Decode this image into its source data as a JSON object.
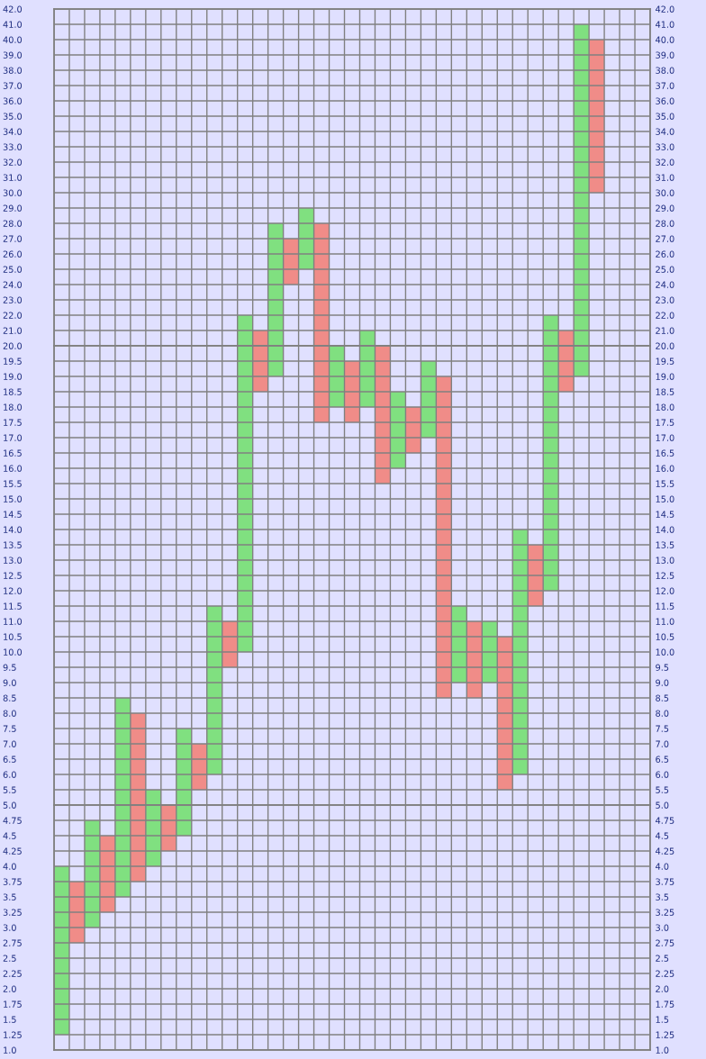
{
  "chart_data": [
    {
      "type": "bar",
      "categories": [
        null,
        null,
        null,
        null,
        null,
        null,
        null,
        null,
        null,
        null,
        null,
        null,
        null,
        null,
        null,
        null,
        null,
        null,
        null,
        null,
        null,
        null,
        null,
        null,
        null,
        null,
        null,
        null,
        null,
        null,
        null,
        null,
        null,
        null,
        null,
        null,
        null,
        null,
        null
      ],
      "values": [
        null,
        null,
        null,
        null,
        null,
        null,
        null,
        null,
        null,
        null,
        null,
        null,
        2,
        1,
        8,
        3,
        4,
        8,
        null,
        null,
        1,
        null,
        null,
        null,
        null,
        null,
        null,
        null,
        null,
        null,
        null,
        null,
        2,
        1,
        21,
        10,
        null,
        null,
        null
      ],
      "base": [
        null,
        null,
        null,
        null,
        null,
        null,
        null,
        null,
        null,
        null,
        null,
        null,
        20,
        20,
        20,
        24,
        25,
        20,
        null,
        null,
        20,
        null,
        null,
        null,
        null,
        null,
        null,
        null,
        null,
        null,
        null,
        null,
        20,
        20,
        20,
        30,
        null,
        null,
        null
      ],
      "colors": [
        null,
        null,
        null,
        null,
        null,
        null,
        null,
        null,
        null,
        null,
        null,
        null,
        "#80e080",
        "#f08c88",
        "#80e080",
        "#f08c88",
        "#80e080",
        "#f08c88",
        null,
        null,
        "#80e080",
        null,
        null,
        null,
        null,
        null,
        null,
        null,
        null,
        null,
        null,
        null,
        "#80e080",
        "#f08c88",
        "#80e080",
        "#f08c88",
        null,
        null,
        null
      ],
      "ylim": [
        20,
        42
      ],
      "yticks": [
        {
          "value": 20,
          "label": "20.0"
        },
        {
          "value": 21,
          "label": "21.0"
        },
        {
          "value": 22,
          "label": "22.0"
        },
        {
          "value": 23,
          "label": "23.0"
        },
        {
          "value": 24,
          "label": "24.0"
        },
        {
          "value": 25,
          "label": "25.0"
        },
        {
          "value": 26,
          "label": "26.0"
        },
        {
          "value": 27,
          "label": "27.0"
        },
        {
          "value": 28,
          "label": "28.0"
        },
        {
          "value": 29,
          "label": "29.0"
        },
        {
          "value": 30,
          "label": "30.0"
        },
        {
          "value": 31,
          "label": "31.0"
        },
        {
          "value": 32,
          "label": "32.0"
        },
        {
          "value": 33,
          "label": "33.0"
        },
        {
          "value": 34,
          "label": "34.0"
        },
        {
          "value": 35,
          "label": "35.0"
        },
        {
          "value": 36,
          "label": "36.0"
        },
        {
          "value": 37,
          "label": "37.0"
        },
        {
          "value": 38,
          "label": "38.0"
        },
        {
          "value": 39,
          "label": "39.0"
        },
        {
          "value": 40,
          "label": "40.0"
        },
        {
          "value": 41,
          "label": "41.0"
        },
        {
          "value": 42,
          "label": "42.0"
        }
      ],
      "y2lim": [
        20,
        42
      ],
      "y2ticks": [
        {
          "value": 20,
          "label": "20.0"
        },
        {
          "value": 21,
          "label": "21.0"
        },
        {
          "value": 22,
          "label": "22.0"
        },
        {
          "value": 23,
          "label": "23.0"
        },
        {
          "value": 24,
          "label": "24.0"
        },
        {
          "value": 25,
          "label": "25.0"
        },
        {
          "value": 26,
          "label": "26.0"
        },
        {
          "value": 27,
          "label": "27.0"
        },
        {
          "value": 28,
          "label": "28.0"
        },
        {
          "value": 29,
          "label": "29.0"
        },
        {
          "value": 30,
          "label": "30.0"
        },
        {
          "value": 31,
          "label": "31.0"
        },
        {
          "value": 32,
          "label": "32.0"
        },
        {
          "value": 33,
          "label": "33.0"
        },
        {
          "value": 34,
          "label": "34.0"
        },
        {
          "value": 35,
          "label": "35.0"
        },
        {
          "value": 36,
          "label": "36.0"
        },
        {
          "value": 37,
          "label": "37.0"
        },
        {
          "value": 38,
          "label": "38.0"
        },
        {
          "value": 39,
          "label": "39.0"
        },
        {
          "value": 40,
          "label": "40.0"
        },
        {
          "value": 41,
          "label": "41.0"
        },
        {
          "value": 42,
          "label": "42.0"
        }
      ],
      "grid": true
    },
    {
      "type": "bar",
      "categories": [
        null,
        null,
        null,
        null,
        null,
        null,
        null,
        null,
        null,
        null,
        null,
        null,
        null,
        null,
        null,
        null,
        null,
        null,
        null,
        null,
        null,
        null,
        null,
        null,
        null,
        null,
        null,
        null,
        null,
        null,
        null,
        null,
        null,
        null,
        null,
        null,
        null,
        null,
        null
      ],
      "values": [
        null,
        null,
        null,
        null,
        3.5,
        3,
        0.5,
        null,
        2.5,
        1.5,
        5.5,
        1.5,
        10,
        1.5,
        1,
        null,
        null,
        2.5,
        2,
        2,
        2,
        4.5,
        2.5,
        1.5,
        2.5,
        10.5,
        2.5,
        2.5,
        2,
        5,
        8,
        2,
        8,
        1.5,
        1,
        null,
        null,
        null,
        null
      ],
      "base": [
        null,
        null,
        null,
        null,
        5,
        5,
        5,
        null,
        5,
        5.5,
        6,
        9.5,
        10,
        18.5,
        19,
        null,
        null,
        17.5,
        18,
        17.5,
        18,
        15.5,
        16,
        16.5,
        17,
        8.5,
        9,
        8.5,
        9,
        5.5,
        6,
        11.5,
        12,
        18.5,
        19,
        null,
        null,
        null,
        null
      ],
      "colors": [
        null,
        null,
        null,
        null,
        "#80e080",
        "#f08c88",
        "#80e080",
        null,
        "#80e080",
        "#f08c88",
        "#80e080",
        "#f08c88",
        "#80e080",
        "#f08c88",
        "#80e080",
        null,
        null,
        "#f08c88",
        "#80e080",
        "#f08c88",
        "#80e080",
        "#f08c88",
        "#80e080",
        "#f08c88",
        "#80e080",
        "#f08c88",
        "#80e080",
        "#f08c88",
        "#80e080",
        "#f08c88",
        "#80e080",
        "#f08c88",
        "#80e080",
        "#f08c88",
        "#80e080",
        null,
        null,
        null,
        null
      ],
      "ylim": [
        5,
        20
      ],
      "yticks": [
        {
          "value": 5,
          "label": "5.0"
        },
        5.5,
        {
          "value": 6,
          "label": "6.0"
        },
        6.5,
        {
          "value": 7,
          "label": "7.0"
        },
        7.5,
        {
          "value": 8,
          "label": "8.0"
        },
        8.5,
        {
          "value": 9,
          "label": "9.0"
        },
        9.5,
        {
          "value": 10,
          "label": "10.0"
        },
        10.5,
        {
          "value": 11,
          "label": "11.0"
        },
        11.5,
        {
          "value": 12,
          "label": "12.0"
        },
        12.5,
        {
          "value": 13,
          "label": "13.0"
        },
        13.5,
        {
          "value": 14,
          "label": "14.0"
        },
        14.5,
        {
          "value": 15,
          "label": "15.0"
        },
        15.5,
        {
          "value": 16,
          "label": "16.0"
        },
        16.5,
        {
          "value": 17,
          "label": "17.0"
        },
        17.5,
        {
          "value": 18,
          "label": "18.0"
        },
        18.5,
        {
          "value": 19,
          "label": "19.0"
        },
        19.5
      ],
      "y2lim": [
        5,
        20
      ],
      "y2ticks": [
        {
          "value": 5,
          "label": "5.0"
        },
        5.5,
        {
          "value": 6,
          "label": "6.0"
        },
        6.5,
        {
          "value": 7,
          "label": "7.0"
        },
        7.5,
        {
          "value": 8,
          "label": "8.0"
        },
        8.5,
        {
          "value": 9,
          "label": "9.0"
        },
        9.5,
        {
          "value": 10,
          "label": "10.0"
        },
        10.5,
        {
          "value": 11,
          "label": "11.0"
        },
        11.5,
        {
          "value": 12,
          "label": "12.0"
        },
        12.5,
        {
          "value": 13,
          "label": "13.0"
        },
        13.5,
        {
          "value": 14,
          "label": "14.0"
        },
        14.5,
        {
          "value": 15,
          "label": "15.0"
        },
        15.5,
        {
          "value": 16,
          "label": "16.0"
        },
        16.5,
        {
          "value": 17,
          "label": "17.0"
        },
        17.5,
        {
          "value": 18,
          "label": "18.0"
        },
        18.5,
        {
          "value": 19,
          "label": "19.0"
        },
        19.5
      ],
      "grid": true
    },
    {
      "type": "bar",
      "categories": [
        null,
        null,
        null,
        null,
        null,
        null,
        null,
        null,
        null,
        null,
        null,
        null,
        null,
        null,
        null,
        null,
        null,
        null,
        null,
        null,
        null,
        null,
        null,
        null,
        null,
        null,
        null,
        null,
        null,
        null,
        null,
        null,
        null,
        null,
        null,
        null,
        null,
        null,
        null
      ],
      "values": [
        2.75,
        1,
        1.75,
        1.25,
        1.5,
        1.25,
        1,
        0.75,
        0.5,
        null,
        null,
        null,
        null,
        null,
        null,
        null,
        null,
        null,
        null,
        null,
        null,
        null,
        null,
        null,
        null,
        null,
        null,
        null,
        null,
        null,
        null,
        null,
        null,
        null,
        null,
        null,
        null,
        null,
        null
      ],
      "base": [
        1.25,
        2.75,
        3,
        3.25,
        3.5,
        3.75,
        4,
        4.25,
        4.5,
        null,
        null,
        null,
        null,
        null,
        null,
        null,
        null,
        null,
        null,
        null,
        null,
        null,
        null,
        null,
        null,
        null,
        null,
        null,
        null,
        null,
        null,
        null,
        null,
        null,
        null,
        null,
        null,
        null,
        null
      ],
      "colors": [
        "#80e080",
        "#f08c88",
        "#80e080",
        "#f08c88",
        "#80e080",
        "#f08c88",
        "#80e080",
        "#f08c88",
        "#80e080",
        null,
        null,
        null,
        null,
        null,
        null,
        null,
        null,
        null,
        null,
        null,
        null,
        null,
        null,
        null,
        null,
        null,
        null,
        null,
        null,
        null,
        null,
        null,
        null,
        null,
        null,
        null,
        null,
        null,
        null
      ],
      "ylim": [
        1,
        5
      ],
      "yticks": [
        {
          "value": 1,
          "label": "1.0"
        },
        1.25,
        1.5,
        1.75,
        {
          "value": 2,
          "label": "2.0"
        },
        2.25,
        2.5,
        2.75,
        {
          "value": 3,
          "label": "3.0"
        },
        3.25,
        3.5,
        3.75,
        {
          "value": 4,
          "label": "4.0"
        },
        4.25,
        4.5,
        4.75
      ],
      "y2lim": [
        1,
        5
      ],
      "y2ticks": [
        {
          "value": 1,
          "label": "1.0"
        },
        1.25,
        1.5,
        1.75,
        {
          "value": 2,
          "label": "2.0"
        },
        2.25,
        2.5,
        2.75,
        {
          "value": 3,
          "label": "3.0"
        },
        3.25,
        3.5,
        3.75,
        {
          "value": 4,
          "label": "4.0"
        },
        4.25,
        4.5,
        4.75
      ],
      "grid": true
    }
  ]
}
